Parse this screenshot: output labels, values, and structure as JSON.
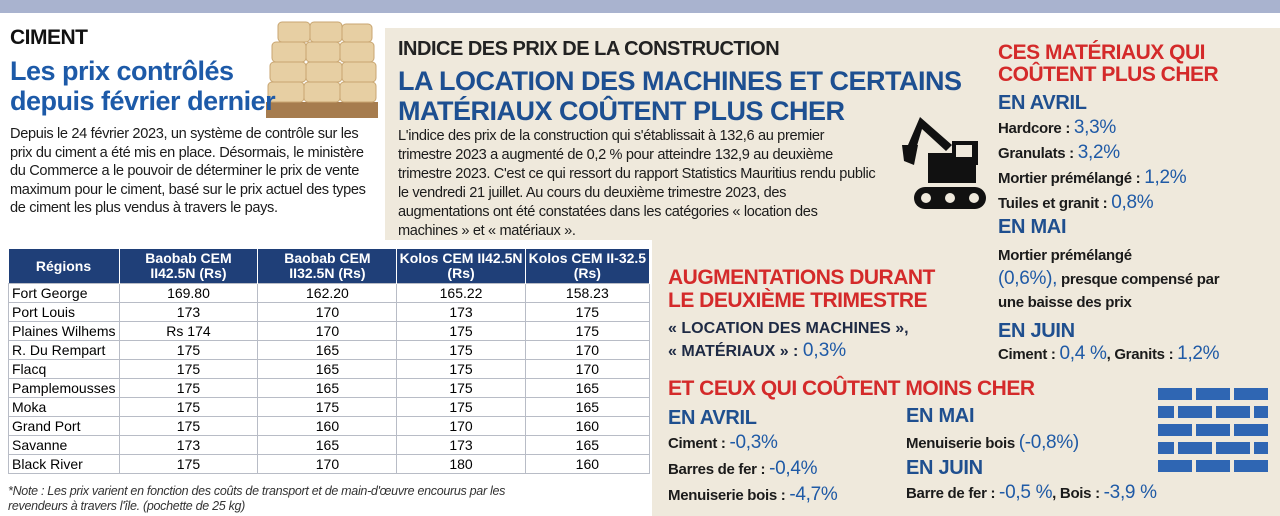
{
  "left": {
    "kicker": "CIMENT",
    "title": [
      "Les prix contrôlés",
      "depuis février dernier"
    ],
    "body": "Depuis le 24 février 2023, un système de contrôle sur les prix du ciment a été mis en place. Désormais, le ministère du Commerce a le pouvoir de déterminer le prix de vente maximum pour le ciment, basé sur le prix actuel des types de ciment les plus vendus à travers le pays.",
    "table": {
      "header": [
        "Régions",
        "Baobab CEM II42.5N (Rs)",
        "Baobab CEM II32.5N (Rs)",
        "Kolos CEM II42.5N (Rs)",
        "Kolos CEM II-32.5 (Rs)"
      ],
      "rows": [
        [
          "Fort George",
          "169.80",
          "162.20",
          "165.22",
          "158.23"
        ],
        [
          "Port Louis",
          "173",
          "170",
          "173",
          "175"
        ],
        [
          "Plaines Wilhems",
          "Rs 174",
          "170",
          "175",
          "175"
        ],
        [
          "R. Du Rempart",
          "175",
          "165",
          "175",
          "170"
        ],
        [
          "Flacq",
          "175",
          "165",
          "175",
          "170"
        ],
        [
          "Pamplemousses",
          "175",
          "165",
          "175",
          "165"
        ],
        [
          "Moka",
          "175",
          "175",
          "175",
          "165"
        ],
        [
          "Grand Port",
          "175",
          "160",
          "170",
          "160"
        ],
        [
          "Savanne",
          "173",
          "165",
          "173",
          "165"
        ],
        [
          "Black River",
          "175",
          "170",
          "180",
          "160"
        ]
      ]
    },
    "note": "*Note : Les prix varient en fonction des coûts de transport et de main-d'œuvre encourus par les revendeurs à travers l'île. (pochette de 25 kg)"
  },
  "middle": {
    "kicker": "INDICE DES PRIX DE LA CONSTRUCTION",
    "title": [
      "LA LOCATION DES MACHINES ET CERTAINS",
      "MATÉRIAUX COÛTENT PLUS CHER"
    ],
    "body": "L'indice des prix de la construction qui s'établissait à 132,6 au premier trimestre 2023 a augmenté de 0,2 % pour atteindre 132,9 au deuxième trimestre 2023. C'est ce qui ressort du rapport Statistics Mauritius rendu public le vendredi 21 juillet. Au cours du deuxième trimestre 2023, des augmentations ont été constatées dans les catégories « location des machines » et « matériaux »."
  },
  "increases": {
    "title": [
      "AUGMENTATIONS DURANT",
      "LE DEUXIÈME TRIMESTRE"
    ],
    "lines": [
      "« LOCATION DES MACHINES »,",
      "« MATÉRIAUX » :"
    ],
    "value": "0,3%"
  },
  "costlier": {
    "title": [
      "CES MATÉRIAUX QUI",
      "COÛTENT PLUS CHER"
    ],
    "april": {
      "heading": "EN AVRIL",
      "lines": [
        [
          {
            "label": "Hardcore :",
            "value": "3,3%"
          }
        ],
        [
          {
            "label": "Granulats :",
            "value": "3,2%"
          }
        ],
        [
          {
            "label": "Mortier prémélangé :",
            "value": "1,2%"
          }
        ],
        [
          {
            "label": "Tuiles et granit :",
            "value": "0,8%"
          }
        ]
      ]
    },
    "may": {
      "heading": "EN MAI",
      "label": "Mortier prémélangé",
      "value": "(0,6%),",
      "after": "presque compensé par une baisse des prix"
    },
    "june": {
      "heading": "EN JUIN",
      "lines": [
        [
          {
            "label": "Ciment :",
            "value": "0,4 %"
          },
          {
            "label": ", Granits :",
            "value": "1,2%"
          }
        ]
      ]
    }
  },
  "cheaper": {
    "title": "ET CEUX QUI COÛTENT MOINS CHER",
    "april": {
      "heading": "EN AVRIL",
      "lines": [
        [
          {
            "label": "Ciment :",
            "value": "-0,3%"
          }
        ],
        [
          {
            "label": "Barres de fer :",
            "value": "-0,4%"
          }
        ],
        [
          {
            "label": "Menuiserie bois :",
            "value": "-4,7%"
          }
        ]
      ]
    },
    "may": {
      "heading": "EN MAI",
      "lines": [
        [
          {
            "label": "Menuiserie bois",
            "value": "(-0,8%)"
          }
        ]
      ]
    },
    "june": {
      "heading": "EN JUIN",
      "lines": [
        [
          {
            "label": "Barre de fer :",
            "value": "-0,5 %"
          },
          {
            "label": ", Bois :",
            "value": "-3,9 %"
          }
        ]
      ]
    }
  }
}
